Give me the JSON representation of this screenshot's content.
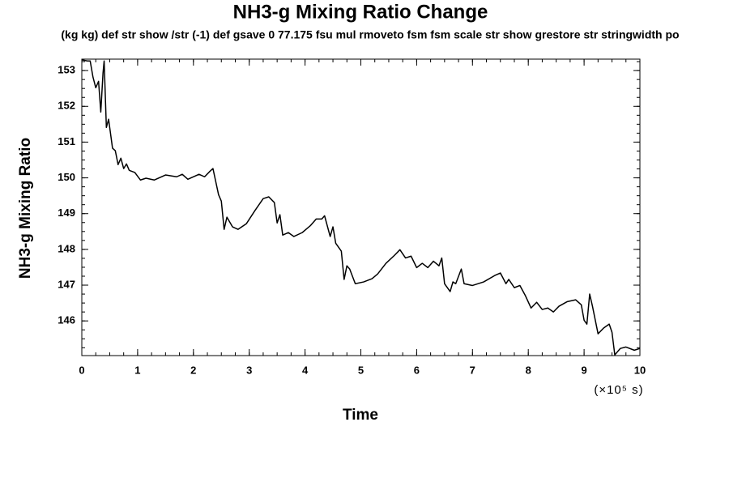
{
  "chart_data": {
    "type": "line",
    "title": "NH3-g Mixing Ratio Change",
    "subtitle": "(kg kg) def str show /str (-1) def gsave 0 77.175 fsu mul rmoveto fsm fsm scale str show grestore str stringwidth po",
    "x_label": "Time",
    "x_unit": "(×10⁵ s)",
    "y_label": "NH3-g Mixing Ratio",
    "xlim": [
      0,
      10
    ],
    "ylim": [
      145.03,
      153.32
    ],
    "xticks": [
      0,
      1,
      2,
      3,
      4,
      5,
      6,
      7,
      8,
      9,
      10
    ],
    "yticks": [
      146,
      147,
      148,
      149,
      150,
      151,
      152,
      153
    ],
    "grid": false,
    "color": "#000000",
    "x": [
      0,
      0.1,
      0.15,
      0.2,
      0.25,
      0.3,
      0.34,
      0.38,
      0.4,
      0.44,
      0.48,
      0.55,
      0.6,
      0.65,
      0.7,
      0.75,
      0.8,
      0.85,
      0.95,
      1.05,
      1.15,
      1.3,
      1.5,
      1.7,
      1.8,
      1.9,
      2.1,
      2.2,
      2.3,
      2.35,
      2.45,
      2.5,
      2.55,
      2.6,
      2.7,
      2.8,
      2.95,
      3.1,
      3.25,
      3.35,
      3.45,
      3.5,
      3.55,
      3.6,
      3.7,
      3.8,
      3.95,
      4.1,
      4.2,
      4.3,
      4.35,
      4.45,
      4.5,
      4.55,
      4.65,
      4.7,
      4.75,
      4.8,
      4.9,
      5.05,
      5.2,
      5.3,
      5.45,
      5.6,
      5.7,
      5.8,
      5.9,
      6.0,
      6.1,
      6.2,
      6.3,
      6.4,
      6.45,
      6.5,
      6.6,
      6.65,
      6.7,
      6.8,
      6.85,
      7.0,
      7.2,
      7.4,
      7.5,
      7.6,
      7.65,
      7.75,
      7.85,
      7.95,
      8.05,
      8.15,
      8.25,
      8.35,
      8.45,
      8.55,
      8.7,
      8.85,
      8.95,
      9.0,
      9.05,
      9.1,
      9.15,
      9.25,
      9.35,
      9.45,
      9.5,
      9.55,
      9.65,
      9.75,
      9.9,
      10
    ],
    "values": [
      153.3,
      153.27,
      153.27,
      152.82,
      152.52,
      152.7,
      151.84,
      152.93,
      153.27,
      151.41,
      151.64,
      150.83,
      150.76,
      150.37,
      150.55,
      150.26,
      150.39,
      150.21,
      150.15,
      149.94,
      149.99,
      149.94,
      150.08,
      150.03,
      150.1,
      149.96,
      150.1,
      150.03,
      150.19,
      150.26,
      149.53,
      149.35,
      148.56,
      148.9,
      148.63,
      148.56,
      148.72,
      149.08,
      149.42,
      149.47,
      149.31,
      148.74,
      148.97,
      148.4,
      148.47,
      148.36,
      148.47,
      148.67,
      148.85,
      148.85,
      148.94,
      148.36,
      148.63,
      148.17,
      147.95,
      147.16,
      147.54,
      147.45,
      147.04,
      147.09,
      147.18,
      147.31,
      147.61,
      147.83,
      147.99,
      147.76,
      147.81,
      147.49,
      147.61,
      147.49,
      147.67,
      147.54,
      147.76,
      147.04,
      146.82,
      147.09,
      147.04,
      147.45,
      147.04,
      146.99,
      147.09,
      147.27,
      147.34,
      147.04,
      147.16,
      146.93,
      146.99,
      146.7,
      146.36,
      146.52,
      146.32,
      146.36,
      146.25,
      146.41,
      146.54,
      146.59,
      146.45,
      146.02,
      145.91,
      146.75,
      146.41,
      145.64,
      145.8,
      145.91,
      145.68,
      145.05,
      145.23,
      145.27,
      145.18,
      145.23
    ]
  }
}
